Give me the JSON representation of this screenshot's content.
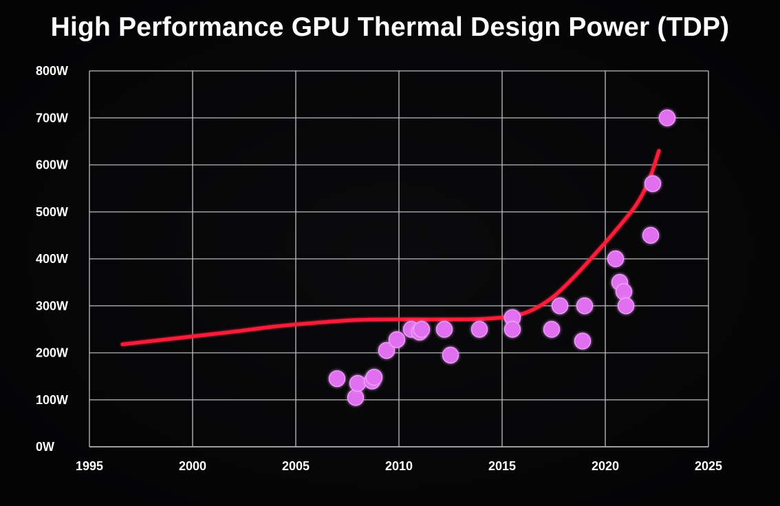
{
  "chart_data": {
    "type": "scatter",
    "title": "High Performance GPU Thermal Design Power (TDP)",
    "xlabel": "",
    "ylabel": "",
    "xlim": [
      1995,
      2025
    ],
    "ylim": [
      0,
      800
    ],
    "grid": true,
    "x_ticks": [
      {
        "value": 1995,
        "label": "1995"
      },
      {
        "value": 2000,
        "label": "2000"
      },
      {
        "value": 2005,
        "label": "2005"
      },
      {
        "value": 2010,
        "label": "2010"
      },
      {
        "value": 2015,
        "label": "2015"
      },
      {
        "value": 2020,
        "label": "2020"
      },
      {
        "value": 2025,
        "label": "2025"
      }
    ],
    "y_ticks": [
      {
        "value": 0,
        "label": "0W"
      },
      {
        "value": 100,
        "label": "100W"
      },
      {
        "value": 200,
        "label": "200W"
      },
      {
        "value": 300,
        "label": "300W"
      },
      {
        "value": 400,
        "label": "400W"
      },
      {
        "value": 500,
        "label": "500W"
      },
      {
        "value": 600,
        "label": "600W"
      },
      {
        "value": 700,
        "label": "700W"
      },
      {
        "value": 800,
        "label": "800W"
      }
    ],
    "series": [
      {
        "type": "scatter",
        "color": "#e070f0",
        "points": [
          {
            "x": 2007.0,
            "y": 145
          },
          {
            "x": 2007.9,
            "y": 105
          },
          {
            "x": 2008.0,
            "y": 135
          },
          {
            "x": 2008.7,
            "y": 140
          },
          {
            "x": 2008.8,
            "y": 148
          },
          {
            "x": 2009.4,
            "y": 205
          },
          {
            "x": 2009.9,
            "y": 228
          },
          {
            "x": 2010.6,
            "y": 250
          },
          {
            "x": 2011.0,
            "y": 244
          },
          {
            "x": 2011.1,
            "y": 250
          },
          {
            "x": 2012.2,
            "y": 250
          },
          {
            "x": 2012.5,
            "y": 195
          },
          {
            "x": 2013.9,
            "y": 250
          },
          {
            "x": 2015.5,
            "y": 275
          },
          {
            "x": 2015.5,
            "y": 250
          },
          {
            "x": 2017.4,
            "y": 250
          },
          {
            "x": 2017.8,
            "y": 300
          },
          {
            "x": 2018.9,
            "y": 225
          },
          {
            "x": 2019.0,
            "y": 300
          },
          {
            "x": 2020.5,
            "y": 400
          },
          {
            "x": 2020.7,
            "y": 350
          },
          {
            "x": 2020.9,
            "y": 330
          },
          {
            "x": 2021.0,
            "y": 300
          },
          {
            "x": 2022.2,
            "y": 450
          },
          {
            "x": 2022.3,
            "y": 560
          },
          {
            "x": 2023.0,
            "y": 700
          }
        ]
      },
      {
        "type": "line",
        "color": "#ff1f3a",
        "points": [
          {
            "x": 1996.6,
            "y": 218
          },
          {
            "x": 1998,
            "y": 225
          },
          {
            "x": 2000,
            "y": 235
          },
          {
            "x": 2002,
            "y": 245
          },
          {
            "x": 2004,
            "y": 256
          },
          {
            "x": 2006,
            "y": 264
          },
          {
            "x": 2008,
            "y": 270
          },
          {
            "x": 2010,
            "y": 271
          },
          {
            "x": 2012,
            "y": 271
          },
          {
            "x": 2014,
            "y": 272
          },
          {
            "x": 2015.5,
            "y": 278
          },
          {
            "x": 2016.5,
            "y": 292
          },
          {
            "x": 2017.5,
            "y": 320
          },
          {
            "x": 2018.5,
            "y": 362
          },
          {
            "x": 2019.5,
            "y": 410
          },
          {
            "x": 2020.5,
            "y": 460
          },
          {
            "x": 2021.5,
            "y": 515
          },
          {
            "x": 2022.1,
            "y": 565
          },
          {
            "x": 2022.6,
            "y": 630
          }
        ]
      }
    ]
  }
}
